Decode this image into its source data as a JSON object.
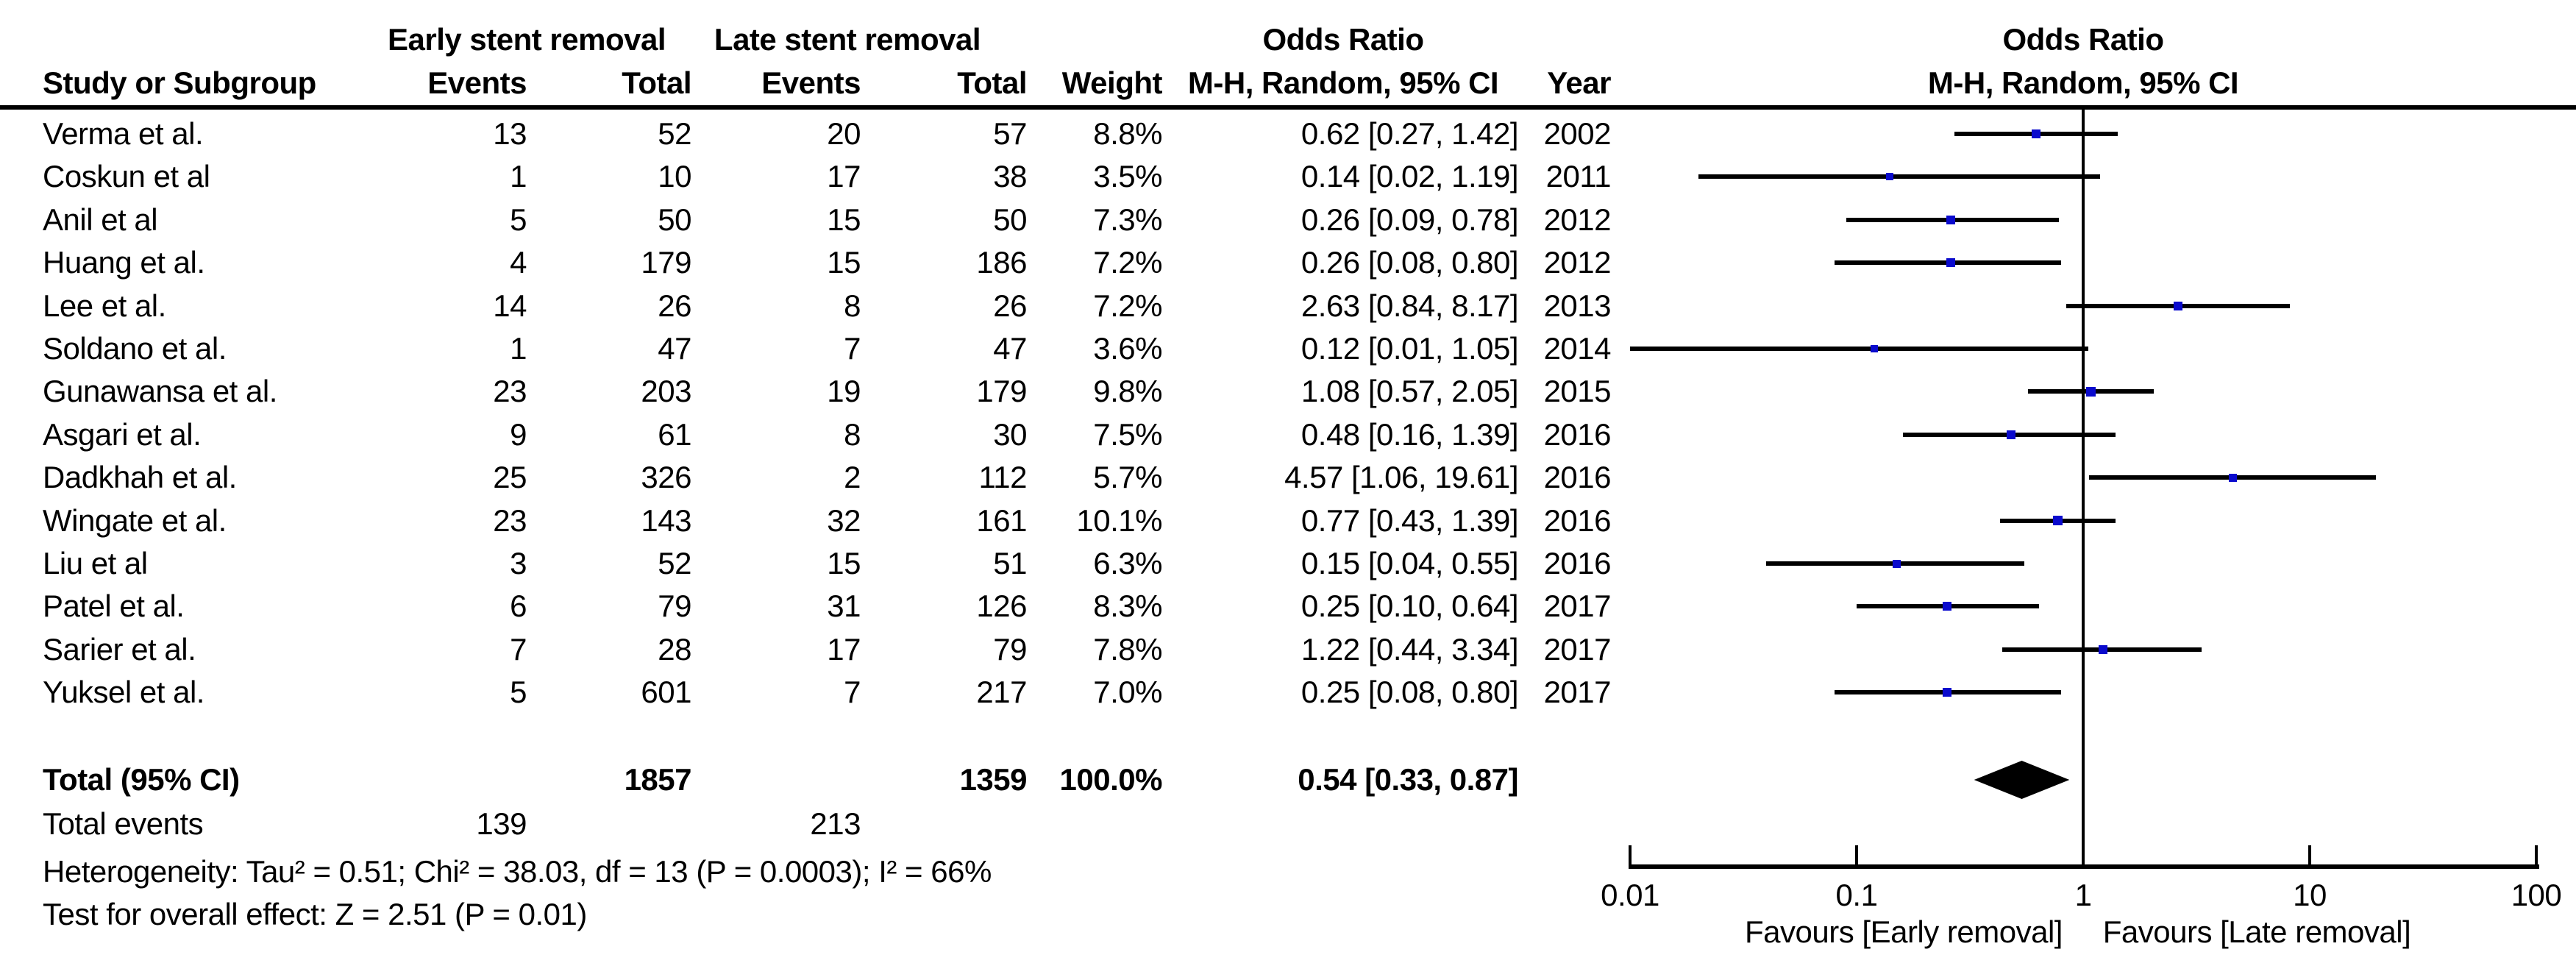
{
  "header": {
    "group_early": "Early stent removal",
    "group_late": "Late stent removal",
    "or_table_title": "Odds Ratio",
    "or_table_subtitle": "M-H, Random, 95% CI",
    "or_plot_title": "Odds Ratio",
    "or_plot_subtitle": "M-H, Random, 95% CI",
    "col_study": "Study or Subgroup",
    "col_events_early": "Events",
    "col_total_early": "Total",
    "col_events_late": "Events",
    "col_total_late": "Total",
    "col_weight": "Weight",
    "col_year": "Year"
  },
  "studies": [
    {
      "name": "Verma et al.",
      "events_early": "13",
      "total_early": "52",
      "events_late": "20",
      "total_late": "57",
      "weight": "8.8%",
      "or_ci": "0.62 [0.27, 1.42]",
      "year": "2002",
      "or": 0.62,
      "ci_low": 0.27,
      "ci_high": 1.42,
      "weight_pct": 8.8
    },
    {
      "name": "Coskun et al",
      "events_early": "1",
      "total_early": "10",
      "events_late": "17",
      "total_late": "38",
      "weight": "3.5%",
      "or_ci": "0.14 [0.02, 1.19]",
      "year": "2011",
      "or": 0.14,
      "ci_low": 0.02,
      "ci_high": 1.19,
      "weight_pct": 3.5
    },
    {
      "name": "Anil et al",
      "events_early": "5",
      "total_early": "50",
      "events_late": "15",
      "total_late": "50",
      "weight": "7.3%",
      "or_ci": "0.26 [0.09, 0.78]",
      "year": "2012",
      "or": 0.26,
      "ci_low": 0.09,
      "ci_high": 0.78,
      "weight_pct": 7.3
    },
    {
      "name": "Huang et al.",
      "events_early": "4",
      "total_early": "179",
      "events_late": "15",
      "total_late": "186",
      "weight": "7.2%",
      "or_ci": "0.26 [0.08, 0.80]",
      "year": "2012",
      "or": 0.26,
      "ci_low": 0.08,
      "ci_high": 0.8,
      "weight_pct": 7.2
    },
    {
      "name": "Lee et al.",
      "events_early": "14",
      "total_early": "26",
      "events_late": "8",
      "total_late": "26",
      "weight": "7.2%",
      "or_ci": "2.63 [0.84, 8.17]",
      "year": "2013",
      "or": 2.63,
      "ci_low": 0.84,
      "ci_high": 8.17,
      "weight_pct": 7.2
    },
    {
      "name": "Soldano et al.",
      "events_early": "1",
      "total_early": "47",
      "events_late": "7",
      "total_late": "47",
      "weight": "3.6%",
      "or_ci": "0.12 [0.01, 1.05]",
      "year": "2014",
      "or": 0.12,
      "ci_low": 0.01,
      "ci_high": 1.05,
      "weight_pct": 3.6
    },
    {
      "name": "Gunawansa et al.",
      "events_early": "23",
      "total_early": "203",
      "events_late": "19",
      "total_late": "179",
      "weight": "9.8%",
      "or_ci": "1.08 [0.57, 2.05]",
      "year": "2015",
      "or": 1.08,
      "ci_low": 0.57,
      "ci_high": 2.05,
      "weight_pct": 9.8
    },
    {
      "name": "Asgari et al.",
      "events_early": "9",
      "total_early": "61",
      "events_late": "8",
      "total_late": "30",
      "weight": "7.5%",
      "or_ci": "0.48 [0.16, 1.39]",
      "year": "2016",
      "or": 0.48,
      "ci_low": 0.16,
      "ci_high": 1.39,
      "weight_pct": 7.5
    },
    {
      "name": "Dadkhah et al.",
      "events_early": "25",
      "total_early": "326",
      "events_late": "2",
      "total_late": "112",
      "weight": "5.7%",
      "or_ci": "4.57 [1.06, 19.61]",
      "year": "2016",
      "or": 4.57,
      "ci_low": 1.06,
      "ci_high": 19.61,
      "weight_pct": 5.7
    },
    {
      "name": "Wingate et al.",
      "events_early": "23",
      "total_early": "143",
      "events_late": "32",
      "total_late": "161",
      "weight": "10.1%",
      "or_ci": "0.77 [0.43, 1.39]",
      "year": "2016",
      "or": 0.77,
      "ci_low": 0.43,
      "ci_high": 1.39,
      "weight_pct": 10.1
    },
    {
      "name": "Liu et al",
      "events_early": "3",
      "total_early": "52",
      "events_late": "15",
      "total_late": "51",
      "weight": "6.3%",
      "or_ci": "0.15 [0.04, 0.55]",
      "year": "2016",
      "or": 0.15,
      "ci_low": 0.04,
      "ci_high": 0.55,
      "weight_pct": 6.3
    },
    {
      "name": "Patel et al.",
      "events_early": "6",
      "total_early": "79",
      "events_late": "31",
      "total_late": "126",
      "weight": "8.3%",
      "or_ci": "0.25 [0.10, 0.64]",
      "year": "2017",
      "or": 0.25,
      "ci_low": 0.1,
      "ci_high": 0.64,
      "weight_pct": 8.3
    },
    {
      "name": "Sarier et al.",
      "events_early": "7",
      "total_early": "28",
      "events_late": "17",
      "total_late": "79",
      "weight": "7.8%",
      "or_ci": "1.22 [0.44, 3.34]",
      "year": "2017",
      "or": 1.22,
      "ci_low": 0.44,
      "ci_high": 3.34,
      "weight_pct": 7.8
    },
    {
      "name": "Yuksel et al.",
      "events_early": "5",
      "total_early": "601",
      "events_late": "7",
      "total_late": "217",
      "weight": "7.0%",
      "or_ci": "0.25 [0.08, 0.80]",
      "year": "2017",
      "or": 0.25,
      "ci_low": 0.08,
      "ci_high": 0.8,
      "weight_pct": 7.0
    }
  ],
  "total_row": {
    "label": "Total (95% CI)",
    "total_early": "1857",
    "total_late": "1359",
    "weight": "100.0%",
    "or_ci": "0.54 [0.33, 0.87]",
    "or": 0.54,
    "ci_low": 0.33,
    "ci_high": 0.87
  },
  "total_events_row": {
    "label": "Total events",
    "events_early": "139",
    "events_late": "213"
  },
  "footer": {
    "heterogeneity": "Heterogeneity: Tau² = 0.51; Chi² = 38.03, df = 13 (P = 0.0003); I² = 66%",
    "overall_effect": "Test for overall effect: Z = 2.51 (P = 0.01)"
  },
  "plot": {
    "ticks": [
      {
        "value": 0.01,
        "label": "0.01"
      },
      {
        "value": 0.1,
        "label": "0.1"
      },
      {
        "value": 1,
        "label": "1"
      },
      {
        "value": 10,
        "label": "10"
      },
      {
        "value": 100,
        "label": "100"
      }
    ],
    "favours_left": "Favours [Early removal]",
    "favours_right": "Favours [Late removal]",
    "marker_color": "#0a0acd",
    "line_color": "#000000"
  },
  "chart_data": {
    "type": "scatter",
    "subtype": "forest-plot-odds-ratio",
    "title": "Odds Ratio",
    "subtitle": "M-H, Random, 95% CI",
    "x_scale": "log",
    "xlim": [
      0.01,
      100
    ],
    "x_ticks": [
      0.01,
      0.1,
      1,
      10,
      100
    ],
    "xlabel_left": "Favours [Early removal]",
    "xlabel_right": "Favours [Late removal]",
    "categories": [
      "Verma et al.",
      "Coskun et al",
      "Anil et al",
      "Huang et al.",
      "Lee et al.",
      "Soldano et al.",
      "Gunawansa et al.",
      "Asgari et al.",
      "Dadkhah et al.",
      "Wingate et al.",
      "Liu et al",
      "Patel et al.",
      "Sarier et al.",
      "Yuksel et al."
    ],
    "years": [
      2002,
      2011,
      2012,
      2012,
      2013,
      2014,
      2015,
      2016,
      2016,
      2016,
      2016,
      2017,
      2017,
      2017
    ],
    "odds_ratios": [
      0.62,
      0.14,
      0.26,
      0.26,
      2.63,
      0.12,
      1.08,
      0.48,
      4.57,
      0.77,
      0.15,
      0.25,
      1.22,
      0.25
    ],
    "ci_low": [
      0.27,
      0.02,
      0.09,
      0.08,
      0.84,
      0.01,
      0.57,
      0.16,
      1.06,
      0.43,
      0.04,
      0.1,
      0.44,
      0.08
    ],
    "ci_high": [
      1.42,
      1.19,
      0.78,
      0.8,
      8.17,
      1.05,
      2.05,
      1.39,
      19.61,
      1.39,
      0.55,
      0.64,
      3.34,
      0.8
    ],
    "weights_pct": [
      8.8,
      3.5,
      7.3,
      7.2,
      7.2,
      3.6,
      9.8,
      7.5,
      5.7,
      10.1,
      6.3,
      8.3,
      7.8,
      7.0
    ],
    "total": {
      "label": "Total (95% CI)",
      "or": 0.54,
      "ci_low": 0.33,
      "ci_high": 0.87,
      "weight_pct": 100.0,
      "n_early": 1857,
      "n_late": 1359,
      "events_early": 139,
      "events_late": 213
    },
    "heterogeneity": {
      "tau2": 0.51,
      "chi2": 38.03,
      "df": 13,
      "p": 0.0003,
      "i2_pct": 66
    },
    "overall_effect": {
      "z": 2.51,
      "p": 0.01
    }
  }
}
